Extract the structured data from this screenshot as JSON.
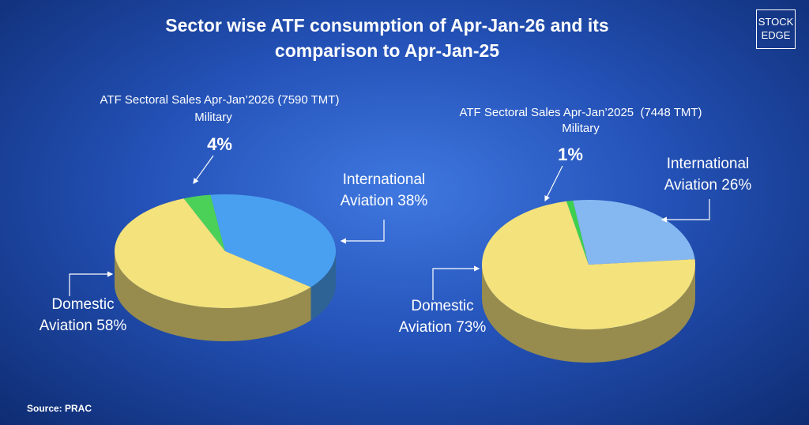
{
  "title": "Sector wise ATF consumption of Apr-Jan-26 and its comparison to Apr-Jan-25",
  "logo": [
    "STOCK",
    "EDGE"
  ],
  "source": "Source: PRAC",
  "chart_data": [
    {
      "type": "pie",
      "title": "ATF Sectoral Sales Apr-Jan’2026 (7590 TMT)",
      "categories": [
        "Military",
        "International Aviation",
        "Domestic Aviation"
      ],
      "values": [
        4,
        38,
        58
      ],
      "value_labels": [
        "4%",
        "38%",
        "58%"
      ],
      "colors": [
        "#4cd158",
        "#4aa0f0",
        "#f4e27c"
      ]
    },
    {
      "type": "pie",
      "title": "ATF Sectoral Sales Apr-Jan’2025  (7448 TMT)",
      "categories": [
        "Military",
        "International Aviation",
        "Domestic Aviation"
      ],
      "values": [
        1,
        26,
        73
      ],
      "value_labels": [
        "1%",
        "26%",
        "73%"
      ],
      "colors": [
        "#3fcf4f",
        "#85b8f0",
        "#f4e27c"
      ]
    }
  ]
}
